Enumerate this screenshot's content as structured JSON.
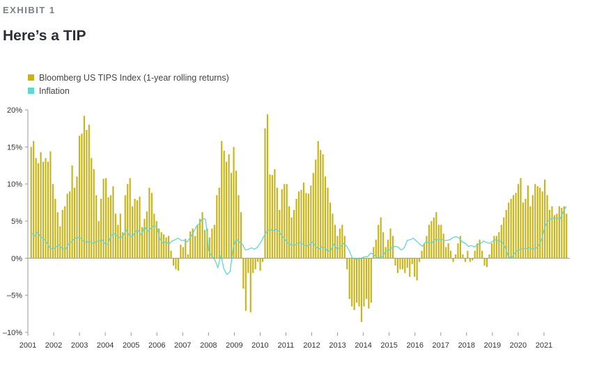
{
  "header": {
    "exhibit": "EXHIBIT 1",
    "title": "Here’s a TIP"
  },
  "colors": {
    "bars": "#c9b418",
    "inflation": "#5fd8cf",
    "axis": "#999999"
  },
  "chart_data": {
    "type": "bar",
    "title": "Here’s a TIP",
    "xlabel": "",
    "ylabel": "",
    "x_range": [
      2001.0,
      2022.0
    ],
    "ylim": [
      -10,
      20
    ],
    "y_ticks": [
      {
        "value": 20,
        "label": "20%"
      },
      {
        "value": 15,
        "label": "15%"
      },
      {
        "value": 10,
        "label": "10%"
      },
      {
        "value": 5,
        "label": "5%"
      },
      {
        "value": 0,
        "label": "0%"
      },
      {
        "value": -5,
        "label": "–5%"
      },
      {
        "value": -10,
        "label": "–10%"
      }
    ],
    "x_ticks": [
      "2001",
      "2002",
      "2003",
      "2004",
      "2005",
      "2006",
      "2007",
      "2008",
      "2009",
      "2010",
      "2011",
      "2012",
      "2013",
      "2014",
      "2015",
      "2016",
      "2017",
      "2018",
      "2019",
      "2020",
      "2021"
    ],
    "legend_position": "top-left",
    "grid": false,
    "series": [
      {
        "name": "Bloomberg US TIPS Index (1-year rolling returns)",
        "type": "bar",
        "frequency": "quarterly",
        "values": [
          15.0,
          15.8,
          13.5,
          12.8,
          14.3,
          13.0,
          13.5,
          13.0,
          14.4,
          10.0,
          8.0,
          6.2,
          4.3,
          6.5,
          7.0,
          8.7,
          9.0,
          12.5,
          9.5,
          11.0,
          16.5,
          16.8,
          19.2,
          17.3,
          18.0,
          13.5,
          12.0,
          8.5,
          5.0,
          8.0,
          10.7,
          10.8,
          8.2,
          8.5,
          9.7,
          6.0,
          4.5,
          6.0,
          3.5,
          8.5,
          10.0,
          10.8,
          7.0,
          8.0,
          7.8,
          8.3,
          4.2,
          5.3,
          6.3,
          9.5,
          8.8,
          6.0,
          5.0,
          4.0,
          3.5,
          3.2,
          2.8,
          3.0,
          1.0,
          -1.0,
          -1.5,
          -1.7,
          1.8,
          1.5,
          2.6,
          0.5,
          3.6,
          4.0,
          3.0,
          4.5,
          5.3,
          6.2,
          3.8,
          4.0,
          2.8,
          4.0,
          4.5,
          8.5,
          9.5,
          15.8,
          14.5,
          13.0,
          14.0,
          11.5,
          15.0,
          11.8,
          8.5,
          6.2,
          -4.1,
          -7.1,
          -2.0,
          -7.3,
          -2.0,
          -1.5,
          -0.5,
          -1.7,
          -0.5,
          17.5,
          19.4,
          11.3,
          11.2,
          12.0,
          9.5,
          6.5,
          9.3,
          10.0,
          10.0,
          7.0,
          5.5,
          6.5,
          8.0,
          9.0,
          9.2,
          10.2,
          8.8,
          8.7,
          9.8,
          11.5,
          13.3,
          15.8,
          14.6,
          14.0,
          11.0,
          9.5,
          7.5,
          6.0,
          4.5,
          3.0,
          4.0,
          4.5,
          3.0,
          -1.5,
          -5.5,
          -6.5,
          -7.0,
          -6.0,
          -6.5,
          -8.6,
          -6.5,
          -5.5,
          -6.8,
          -6.0,
          1.5,
          2.5,
          4.5,
          5.5,
          3.5,
          1.5,
          2.5,
          4.0,
          3.0,
          -1.0,
          -2.0,
          -1.5,
          -1.5,
          -2.0,
          -1.3,
          -2.5,
          -0.8,
          -2.5,
          -3.0,
          -0.5,
          1.0,
          2.0,
          3.0,
          4.5,
          5.0,
          5.5,
          6.2,
          4.5,
          4.5,
          3.3,
          1.5,
          2.0,
          1.0,
          -0.5,
          0.5,
          2.0,
          3.0,
          0.5,
          -0.5,
          1.0,
          -0.5,
          -0.3,
          1.0,
          2.0,
          2.5,
          1.0,
          -1.0,
          -1.2,
          0.5,
          2.0,
          3.0,
          3.0,
          3.5,
          4.5,
          5.5,
          6.5,
          7.5,
          8.0,
          8.5,
          8.8,
          10.0,
          10.8,
          7.5,
          8.0,
          9.8,
          7.0,
          8.5,
          10.0,
          9.7,
          9.5,
          9.0,
          10.6,
          8.5,
          6.5,
          7.0,
          5.8,
          6.0,
          7.0,
          6.8,
          7.0,
          6.0
        ]
      },
      {
        "name": "Inflation",
        "type": "line",
        "frequency": "quarterly",
        "values": [
          3.4,
          3.0,
          3.5,
          2.9,
          2.6,
          2.1,
          1.4,
          1.2,
          1.5,
          1.8,
          1.3,
          1.1,
          1.8,
          2.2,
          2.6,
          2.8,
          2.7,
          2.3,
          2.1,
          2.3,
          2.0,
          2.2,
          2.3,
          2.5,
          2.0,
          1.9,
          3.0,
          3.3,
          3.0,
          2.7,
          3.0,
          3.8,
          3.1,
          2.9,
          3.6,
          3.7,
          3.1,
          4.3,
          3.6,
          4.0,
          4.4,
          4.3,
          2.6,
          2.0,
          2.2,
          1.9,
          2.3,
          2.5,
          2.7,
          2.4,
          2.4,
          2.2,
          2.8,
          3.5,
          4.3,
          4.7,
          5.4,
          5.2,
          1.0,
          0.3,
          -0.2,
          -1.3,
          0.4,
          -1.5,
          -2.2,
          -1.8,
          1.4,
          2.6,
          2.2,
          1.9,
          1.1,
          1.2,
          1.4,
          1.2,
          1.5,
          2.1,
          2.9,
          3.6,
          3.9,
          3.7,
          3.9,
          3.6,
          3.0,
          2.5,
          2.0,
          1.8,
          1.7,
          2.0,
          2.1,
          1.8,
          1.6,
          1.8,
          2.2,
          1.6,
          1.2,
          1.5,
          1.4,
          0.9,
          1.1,
          1.9,
          1.2,
          1.5,
          2.0,
          1.7,
          1.0,
          0.0,
          -0.1,
          -0.2,
          0.0,
          0.2,
          0.2,
          0.7,
          0.5,
          0.1,
          0.1,
          0.3,
          1.0,
          1.1,
          1.4,
          1.6,
          1.5,
          1.1,
          1.4,
          2.4,
          2.5,
          2.7,
          2.3,
          1.9,
          1.6,
          2.2,
          2.1,
          2.0,
          2.5,
          2.5,
          2.6,
          2.4,
          2.4,
          2.5,
          2.8,
          2.9,
          2.7,
          2.2,
          2.0,
          1.6,
          1.7,
          1.5,
          1.8,
          2.0,
          2.3,
          2.1,
          2.0,
          2.3,
          2.5,
          2.3,
          2.2,
          1.5,
          0.3,
          0.0,
          0.6,
          1.0,
          1.2,
          1.3,
          1.3,
          1.4,
          1.2,
          1.3,
          1.7,
          2.6,
          4.2,
          5.0,
          5.3,
          5.4,
          5.4,
          5.3,
          6.2,
          7.0
        ]
      }
    ]
  }
}
